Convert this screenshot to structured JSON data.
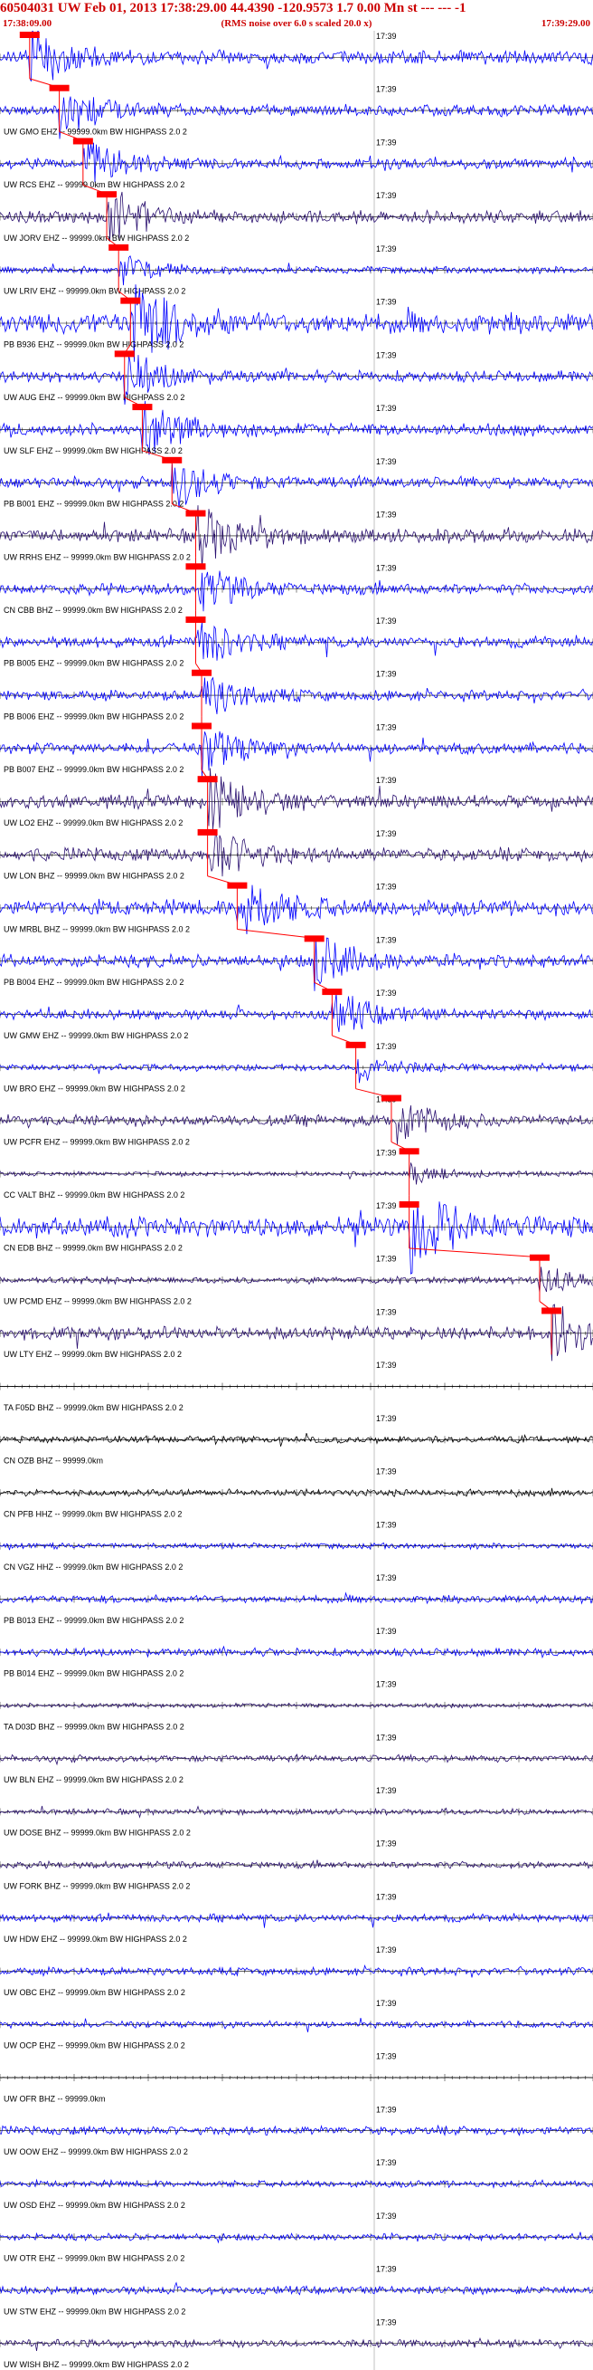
{
  "header": {
    "title": "60504031 UW Feb 01, 2013 17:38:29.00   44.4390 -120.9573  1.7 0.00 Mn st --- --- -1",
    "start_time": "17:38:09.00",
    "note": "(RMS noise over 6.0 s scaled 20.0 x)",
    "end_time": "17:39:29.00"
  },
  "colors": {
    "blue": "#0000ff",
    "navy": "#2a1070",
    "black": "#000000",
    "pick": "#ff0000"
  },
  "minute_label": "17:39",
  "traces": [
    {
      "label": "",
      "color": "blue",
      "amp": 0.6,
      "pick": 0.05
    },
    {
      "label": "UW GMO EHZ -- 99999.0km BW  HIGHPASS  2.0  2",
      "color": "blue",
      "amp": 0.5,
      "pick": 0.1
    },
    {
      "label": "UW RCS EHZ -- 99999.0km BW  HIGHPASS  2.0  2",
      "color": "blue",
      "amp": 0.45,
      "pick": 0.14
    },
    {
      "label": "UW JORV EHZ -- 99999.0km BW  HIGHPASS  2.0  2",
      "color": "navy",
      "amp": 0.55,
      "pick": 0.18
    },
    {
      "label": "UW LRIV EHZ -- 99999.0km BW  HIGHPASS  2.0  2",
      "color": "blue",
      "amp": 0.3,
      "pick": 0.2
    },
    {
      "label": "PB B936 EHZ -- 99999.0km BW  HIGHPASS  2.0  2",
      "color": "blue",
      "amp": 0.95,
      "pick": 0.22
    },
    {
      "label": "UW AUG EHZ -- 99999.0km BW  HIGHPASS  2.0  2",
      "color": "blue",
      "amp": 0.5,
      "pick": 0.21
    },
    {
      "label": "UW SLF EHZ -- 99999.0km BW  HIGHPASS  2.0  2",
      "color": "blue",
      "amp": 0.55,
      "pick": 0.24
    },
    {
      "label": "PB B001 EHZ -- 99999.0km BW  HIGHPASS  2.0  2",
      "color": "blue",
      "amp": 0.5,
      "pick": 0.29
    },
    {
      "label": "UW RRHS EHZ -- 99999.0km BW  HIGHPASS  2.0  2",
      "color": "navy",
      "amp": 0.6,
      "pick": 0.33
    },
    {
      "label": "CN CBB BHZ -- 99999.0km BW  HIGHPASS  2.0  2",
      "color": "blue",
      "amp": 0.5,
      "pick": 0.33
    },
    {
      "label": "PB B005 EHZ -- 99999.0km BW  HIGHPASS  2.0  2",
      "color": "blue",
      "amp": 0.5,
      "pick": 0.33
    },
    {
      "label": "PB B006 EHZ -- 99999.0km BW  HIGHPASS  2.0  2",
      "color": "blue",
      "amp": 0.45,
      "pick": 0.34
    },
    {
      "label": "PB B007 EHZ -- 99999.0km BW  HIGHPASS  2.0  2",
      "color": "blue",
      "amp": 0.5,
      "pick": 0.34
    },
    {
      "label": "UW LO2 EHZ -- 99999.0km BW  HIGHPASS  2.0  2",
      "color": "navy",
      "amp": 0.6,
      "pick": 0.35
    },
    {
      "label": "UW LON BHZ -- 99999.0km BW  HIGHPASS  2.0  2",
      "color": "navy",
      "amp": 0.6,
      "pick": 0.35
    },
    {
      "label": "UW MRBL BHZ -- 99999.0km BW  HIGHPASS  2.0  2",
      "color": "blue",
      "amp": 0.7,
      "pick": 0.4
    },
    {
      "label": "PB B004 EHZ -- 99999.0km BW  HIGHPASS  2.0  2",
      "color": "blue",
      "amp": 0.55,
      "pick": 0.53
    },
    {
      "label": "UW GMW EHZ -- 99999.0km BW  HIGHPASS  2.0  2",
      "color": "blue",
      "amp": 0.45,
      "pick": 0.56
    },
    {
      "label": "UW BRO EHZ -- 99999.0km BW  HIGHPASS  2.0  2",
      "color": "blue",
      "amp": 0.3,
      "pick": 0.6
    },
    {
      "label": "UW PCFR EHZ -- 99999.0km BW  HIGHPASS  2.0  2",
      "color": "navy",
      "amp": 0.5,
      "pick": 0.66
    },
    {
      "label": "CC VALT BHZ -- 99999.0km BW  HIGHPASS  2.0  2",
      "color": "navy",
      "amp": 0.2,
      "pick": 0.69
    },
    {
      "label": "CN EDB BHZ -- 99999.0km BW  HIGHPASS  2.0  2",
      "color": "blue",
      "amp": 0.9,
      "pick": 0.69
    },
    {
      "label": "UW PCMD EHZ -- 99999.0km BW  HIGHPASS  2.0  2",
      "color": "navy",
      "amp": 0.3,
      "pick": 0.91
    },
    {
      "label": "UW LTY EHZ -- 99999.0km BW  HIGHPASS  2.0  2",
      "color": "navy",
      "amp": 0.6,
      "pick": 0.93
    },
    {
      "label": "TA F05D BHZ -- 99999.0km BW  HIGHPASS  2.0  2",
      "color": "black",
      "amp": 0.02,
      "pick": null
    },
    {
      "label": "CN OZB BHZ -- 99999.0km",
      "color": "black",
      "amp": 0.3,
      "pick": null
    },
    {
      "label": "CN PFB HHZ -- 99999.0km BW  HIGHPASS  2.0  2",
      "color": "black",
      "amp": 0.3,
      "pick": null
    },
    {
      "label": "CN VGZ HHZ -- 99999.0km BW  HIGHPASS  2.0  2",
      "color": "blue",
      "amp": 0.25,
      "pick": null
    },
    {
      "label": "PB B013 EHZ -- 99999.0km BW  HIGHPASS  2.0  2",
      "color": "blue",
      "amp": 0.35,
      "pick": null
    },
    {
      "label": "PB B014 EHZ -- 99999.0km BW  HIGHPASS  2.0  2",
      "color": "blue",
      "amp": 0.35,
      "pick": null
    },
    {
      "label": "TA D03D BHZ -- 99999.0km BW  HIGHPASS  2.0  2",
      "color": "navy",
      "amp": 0.2,
      "pick": null
    },
    {
      "label": "UW BLN EHZ -- 99999.0km BW  HIGHPASS  2.0  2",
      "color": "navy",
      "amp": 0.3,
      "pick": null
    },
    {
      "label": "UW DOSE BHZ -- 99999.0km BW  HIGHPASS  2.0  2",
      "color": "navy",
      "amp": 0.25,
      "pick": null
    },
    {
      "label": "UW FORK BHZ -- 99999.0km BW  HIGHPASS  2.0  2",
      "color": "navy",
      "amp": 0.3,
      "pick": null
    },
    {
      "label": "UW HDW EHZ -- 99999.0km BW  HIGHPASS  2.0  2",
      "color": "blue",
      "amp": 0.35,
      "pick": null
    },
    {
      "label": "UW OBC EHZ -- 99999.0km BW  HIGHPASS  2.0  2",
      "color": "blue",
      "amp": 0.35,
      "pick": null
    },
    {
      "label": "UW OCP EHZ -- 99999.0km BW  HIGHPASS  2.0  2",
      "color": "blue",
      "amp": 0.3,
      "pick": null
    },
    {
      "label": "UW OFR BHZ -- 99999.0km",
      "color": "black",
      "amp": 0.02,
      "pick": null
    },
    {
      "label": "UW OOW EHZ -- 99999.0km BW  HIGHPASS  2.0  2",
      "color": "blue",
      "amp": 0.4,
      "pick": null
    },
    {
      "label": "UW OSD EHZ -- 99999.0km BW  HIGHPASS  2.0  2",
      "color": "blue",
      "amp": 0.3,
      "pick": null
    },
    {
      "label": "UW OTR EHZ -- 99999.0km BW  HIGHPASS  2.0  2",
      "color": "blue",
      "amp": 0.3,
      "pick": null
    },
    {
      "label": "UW STW EHZ -- 99999.0km BW  HIGHPASS  2.0  2",
      "color": "blue",
      "amp": 0.35,
      "pick": null
    },
    {
      "label": "UW WISH BHZ -- 99999.0km BW  HIGHPASS  2.0  2",
      "color": "navy",
      "amp": 0.35,
      "pick": null
    }
  ]
}
